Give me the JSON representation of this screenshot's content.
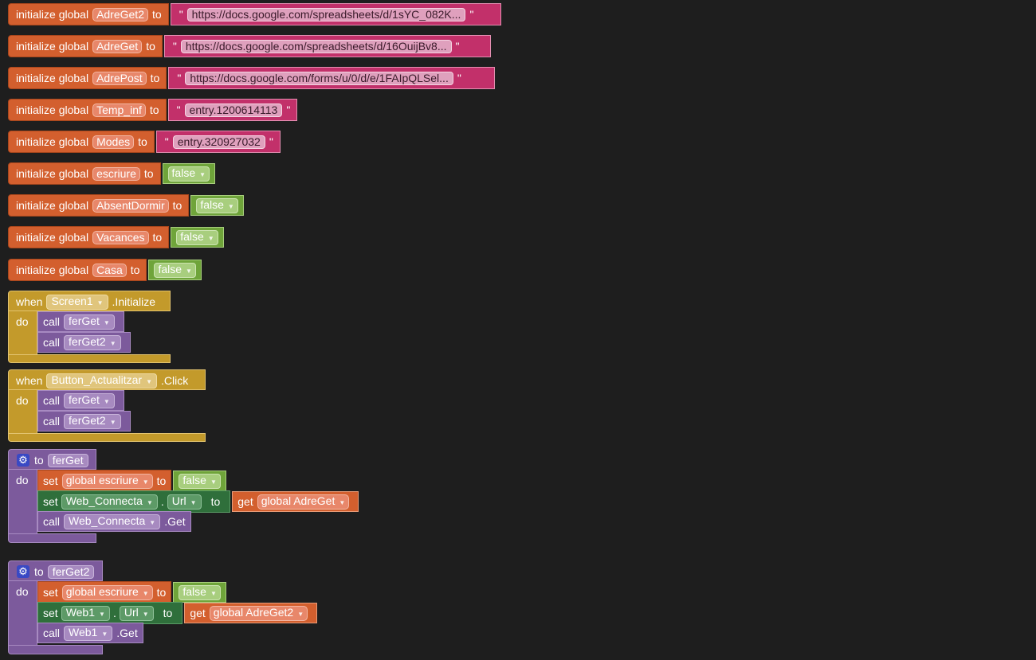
{
  "keywords": {
    "initialize_global": "initialize global",
    "to": "to",
    "quote": "\"",
    "when": "when",
    "do": "do",
    "call": "call",
    "set": "set",
    "get": "get",
    "dot": "."
  },
  "globals": [
    {
      "name": "AdreGet2",
      "type": "text",
      "value": "https://docs.google.com/spreadsheets/d/1sYC_082K..."
    },
    {
      "name": "AdreGet",
      "type": "text",
      "value": "https://docs.google.com/spreadsheets/d/16OuijBv8..."
    },
    {
      "name": "AdrePost",
      "type": "text",
      "value": "https://docs.google.com/forms/u/0/d/e/1FAIpQLSel..."
    },
    {
      "name": "Temp_inf",
      "type": "text",
      "value": "entry.1200614113"
    },
    {
      "name": "Modes",
      "type": "text",
      "value": "entry.320927032"
    },
    {
      "name": "escriure",
      "type": "bool",
      "value": "false"
    },
    {
      "name": "AbsentDormir",
      "type": "bool",
      "value": "false"
    },
    {
      "name": "Vacances",
      "type": "bool",
      "value": "false"
    },
    {
      "name": "Casa",
      "type": "bool",
      "value": "false"
    }
  ],
  "events": [
    {
      "component": "Screen1",
      "event": ".Initialize",
      "calls": [
        "ferGet",
        "ferGet2"
      ]
    },
    {
      "component": "Button_Actualitzar",
      "event": ".Click",
      "calls": [
        "ferGet",
        "ferGet2"
      ]
    }
  ],
  "procedures": [
    {
      "name": "ferGet",
      "set_var": "global escriure",
      "set_value": "false",
      "component": "Web_Connecta",
      "property": "Url",
      "get_var": "global AdreGet",
      "call_method": ".Get"
    },
    {
      "name": "ferGet2",
      "set_var": "global escriure",
      "set_value": "false",
      "component": "Web1",
      "property": "Url",
      "get_var": "global AdreGet2",
      "call_method": ".Get"
    }
  ],
  "colors": {
    "background": "#1e1e1e",
    "variables": "#d35f2e",
    "text": "#c2306a",
    "logic": "#6fa43a",
    "control": "#c39a2b",
    "procedures": "#7c5a9c",
    "components": "#2f6f3b"
  },
  "icons": {
    "procedure_gear": "gear-icon",
    "dropdown": "chevron-down-icon"
  }
}
